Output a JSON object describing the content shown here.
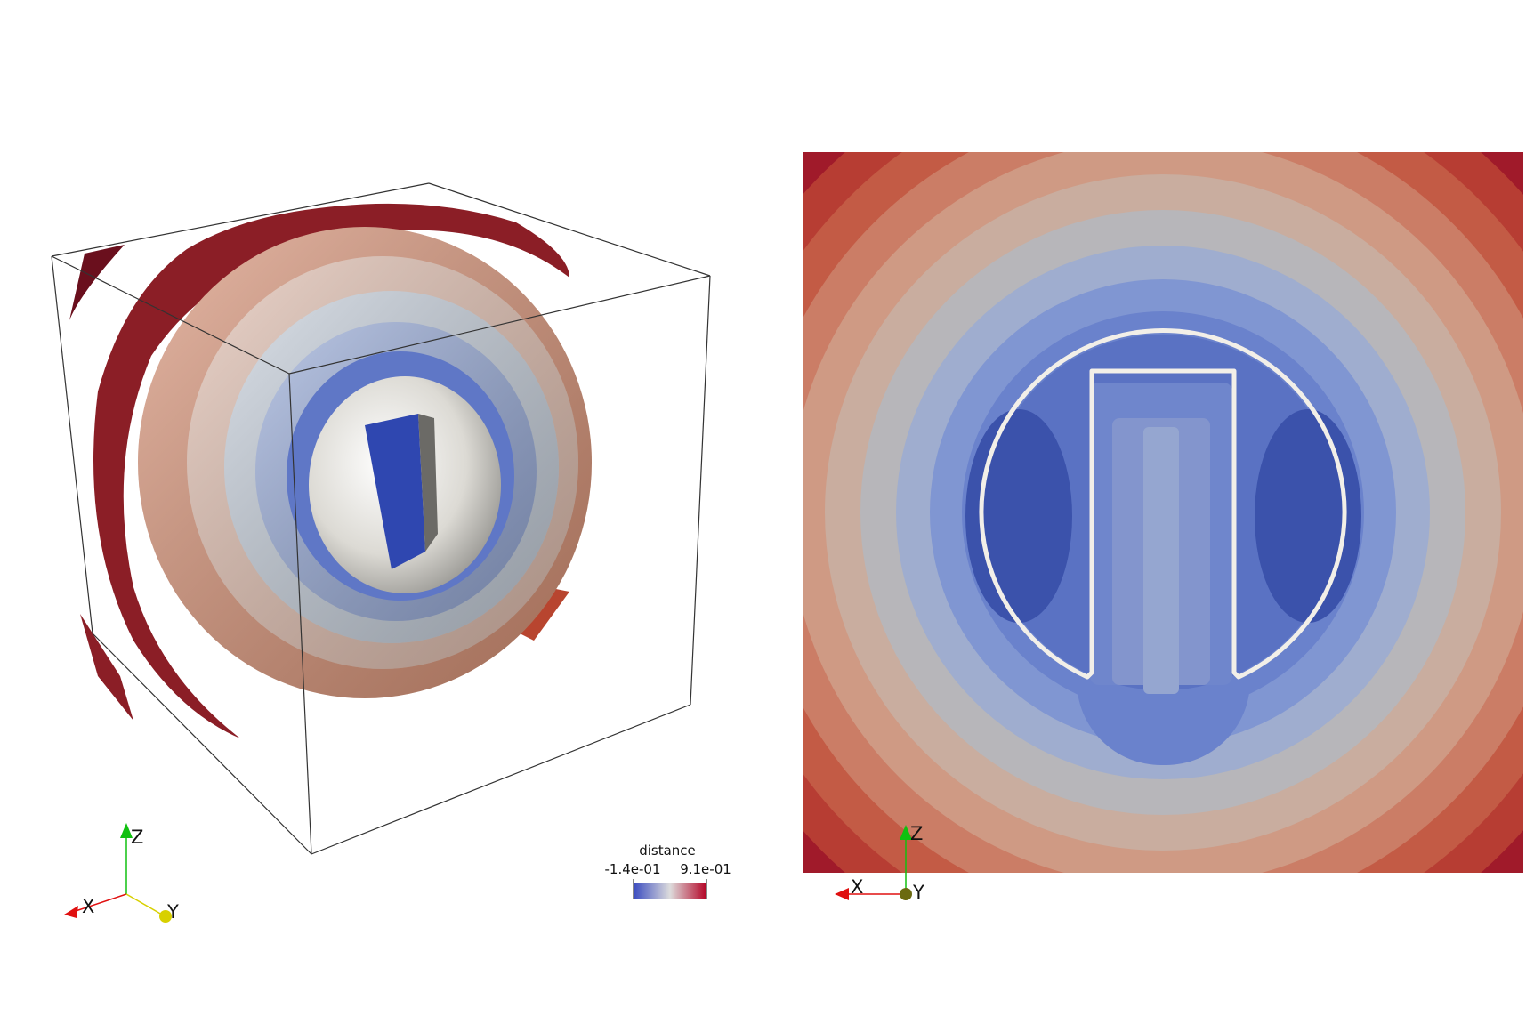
{
  "colors": {
    "background": "#ffffff",
    "cold": "#3b4cc0",
    "neutral": "#dddcdc",
    "hot": "#b40426",
    "axis_x": "#e01010",
    "axis_y": "#d8d000",
    "axis_z": "#10c010",
    "outline": "#222222"
  },
  "left_view": {
    "legend": {
      "title": "distance",
      "min_label": "-1.4e-01",
      "max_label": "9.1e-01",
      "colormap": "Cool to Warm"
    },
    "orientation_axes": {
      "x": "X",
      "y": "Y",
      "z": "Z"
    }
  },
  "right_view": {
    "orientation_axes": {
      "x": "X",
      "y": "Y",
      "z": "Z"
    }
  }
}
